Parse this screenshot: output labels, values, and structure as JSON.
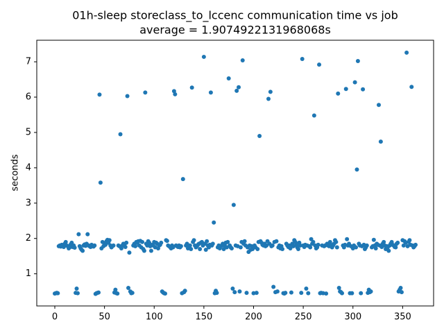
{
  "chart_data": {
    "type": "scatter",
    "title": "01h-sleep storeclass_to_lccenc communication time vs job",
    "subtitle": "average = 1.9074922131968068s",
    "y_label": "seconds",
    "color": "#1f77b4",
    "xlim": [
      -18.15,
      381.15
    ],
    "ylim": [
      0.09,
      7.61
    ],
    "xticks": [
      0,
      50,
      100,
      150,
      200,
      250,
      300,
      350
    ],
    "yticks": [
      1,
      2,
      3,
      4,
      5,
      6,
      7
    ],
    "x": [
      0,
      1,
      2,
      3,
      4,
      5,
      6,
      7,
      8,
      9,
      10,
      11,
      12,
      13,
      14,
      15,
      16,
      17,
      18,
      19,
      20,
      21,
      22,
      23,
      24,
      25,
      26,
      27,
      28,
      29,
      30,
      31,
      32,
      33,
      34,
      35,
      36,
      37,
      38,
      39,
      40,
      41,
      42,
      43,
      44,
      45,
      46,
      47,
      48,
      49,
      50,
      51,
      52,
      53,
      54,
      55,
      56,
      57,
      58,
      59,
      60,
      61,
      62,
      63,
      64,
      65,
      66,
      67,
      68,
      69,
      70,
      71,
      72,
      73,
      74,
      75,
      76,
      77,
      78,
      79,
      80,
      81,
      82,
      83,
      84,
      85,
      86,
      87,
      88,
      89,
      90,
      91,
      92,
      93,
      94,
      95,
      96,
      97,
      98,
      99,
      100,
      101,
      102,
      103,
      104,
      105,
      106,
      107,
      108,
      109,
      110,
      111,
      112,
      113,
      114,
      115,
      116,
      117,
      118,
      119,
      120,
      121,
      122,
      123,
      124,
      125,
      126,
      127,
      128,
      129,
      130,
      131,
      132,
      133,
      134,
      135,
      136,
      137,
      138,
      139,
      140,
      141,
      142,
      143,
      144,
      145,
      146,
      147,
      148,
      149,
      150,
      151,
      152,
      153,
      154,
      155,
      156,
      157,
      158,
      159,
      160,
      161,
      162,
      163,
      164,
      165,
      166,
      167,
      168,
      169,
      170,
      171,
      172,
      173,
      174,
      175,
      176,
      177,
      178,
      179,
      180,
      181,
      182,
      183,
      184,
      185,
      186,
      187,
      188,
      189,
      190,
      191,
      192,
      193,
      194,
      195,
      196,
      197,
      198,
      199,
      200,
      201,
      202,
      203,
      204,
      205,
      206,
      207,
      208,
      209,
      210,
      211,
      212,
      213,
      214,
      215,
      216,
      217,
      218,
      219,
      220,
      221,
      222,
      223,
      224,
      225,
      226,
      227,
      228,
      229,
      230,
      231,
      232,
      233,
      234,
      235,
      236,
      237,
      238,
      239,
      240,
      241,
      242,
      243,
      244,
      245,
      246,
      247,
      248,
      249,
      250,
      251,
      252,
      253,
      254,
      255,
      256,
      257,
      258,
      259,
      260,
      261,
      262,
      263,
      264,
      265,
      266,
      267,
      268,
      269,
      270,
      271,
      272,
      273,
      274,
      275,
      276,
      277,
      278,
      279,
      280,
      281,
      282,
      283,
      284,
      285,
      286,
      287,
      288,
      289,
      290,
      291,
      292,
      293,
      294,
      295,
      296,
      297,
      298,
      299,
      300,
      301,
      302,
      303,
      304,
      305,
      306,
      307,
      308,
      309,
      310,
      311,
      312,
      313,
      314,
      315,
      316,
      317,
      318,
      319,
      320,
      321,
      322,
      323,
      324,
      325,
      326,
      327,
      328,
      329,
      330,
      331,
      332,
      333,
      334,
      335,
      336,
      337,
      338,
      339,
      340,
      341,
      342,
      343,
      344,
      345,
      346,
      347,
      348,
      349,
      350,
      351,
      352,
      353,
      354,
      355,
      356,
      357,
      358,
      359,
      360,
      361,
      362,
      363
    ],
    "values": [
      0.44,
      0.45,
      0.46,
      0.45,
      1.78,
      1.8,
      1.77,
      1.82,
      1.79,
      1.76,
      1.85,
      1.9,
      1.8,
      1.78,
      1.72,
      1.75,
      1.83,
      1.88,
      1.76,
      1.8,
      1.74,
      0.46,
      0.58,
      0.45,
      2.12,
      1.78,
      1.72,
      1.68,
      1.65,
      1.8,
      1.83,
      1.79,
      1.85,
      2.12,
      1.8,
      1.78,
      1.76,
      1.82,
      1.79,
      1.77,
      1.8,
      0.43,
      0.45,
      0.46,
      0.47,
      6.07,
      3.58,
      1.72,
      1.9,
      1.78,
      1.85,
      1.82,
      1.92,
      1.96,
      1.88,
      1.95,
      1.8,
      1.75,
      1.78,
      1.8,
      0.47,
      0.55,
      0.45,
      0.44,
      1.8,
      1.78,
      4.95,
      1.72,
      1.8,
      1.85,
      1.83,
      1.76,
      1.88,
      6.03,
      0.6,
      1.6,
      0.5,
      0.45,
      0.46,
      1.8,
      1.85,
      1.78,
      1.9,
      1.88,
      1.92,
      1.8,
      1.93,
      1.75,
      1.9,
      1.7,
      1.65,
      6.13,
      1.85,
      1.8,
      1.92,
      1.88,
      1.78,
      1.65,
      1.82,
      1.8,
      1.9,
      1.75,
      1.88,
      1.85,
      1.72,
      1.8,
      1.82,
      1.88,
      0.5,
      0.47,
      0.45,
      0.44,
      1.95,
      1.93,
      1.8,
      1.78,
      1.76,
      1.72,
      1.8,
      1.75,
      6.17,
      6.08,
      1.8,
      1.78,
      1.76,
      1.8,
      1.75,
      1.78,
      0.45,
      3.68,
      0.48,
      0.52,
      1.8,
      1.85,
      1.72,
      1.75,
      1.8,
      1.7,
      6.27,
      1.9,
      1.95,
      1.8,
      1.75,
      1.78,
      1.82,
      1.85,
      1.7,
      1.88,
      1.9,
      1.8,
      7.14,
      1.85,
      1.68,
      1.92,
      1.8,
      1.75,
      1.82,
      6.13,
      1.8,
      1.85,
      2.45,
      0.45,
      0.52,
      0.46,
      1.75,
      1.8,
      1.72,
      1.78,
      1.8,
      1.85,
      1.7,
      1.8,
      1.88,
      1.75,
      1.9,
      6.53,
      1.8,
      1.75,
      1.72,
      0.58,
      2.95,
      0.48,
      1.8,
      6.18,
      1.78,
      6.28,
      0.5,
      1.75,
      1.9,
      7.04,
      1.85,
      1.92,
      1.8,
      0.46,
      1.75,
      1.62,
      1.8,
      1.68,
      1.78,
      1.7,
      0.45,
      1.8,
      1.75,
      0.46,
      1.7,
      1.9,
      4.9,
      1.92,
      1.88,
      1.82,
      1.8,
      1.85,
      1.78,
      1.8,
      1.92,
      5.95,
      1.85,
      6.15,
      1.78,
      1.8,
      0.63,
      1.9,
      0.48,
      1.92,
      0.5,
      1.75,
      1.8,
      1.72,
      1.78,
      1.7,
      0.45,
      0.44,
      0.46,
      1.85,
      1.8,
      1.76,
      1.8,
      1.72,
      0.47,
      1.85,
      1.78,
      1.95,
      1.9,
      1.82,
      1.75,
      1.7,
      1.88,
      1.8,
      0.46,
      7.08,
      1.8,
      1.76,
      1.82,
      0.58,
      1.8,
      0.45,
      1.78,
      1.75,
      1.98,
      1.85,
      1.9,
      5.48,
      1.8,
      1.72,
      1.75,
      1.82,
      6.92,
      0.45,
      0.46,
      1.8,
      0.45,
      1.78,
      1.8,
      0.44,
      1.85,
      1.8,
      1.78,
      1.9,
      1.82,
      1.75,
      1.8,
      1.85,
      1.95,
      1.9,
      1.75,
      6.1,
      0.6,
      0.5,
      0.48,
      0.45,
      1.8,
      1.75,
      1.82,
      6.23,
      1.98,
      1.8,
      1.85,
      0.45,
      1.78,
      0.45,
      1.72,
      1.8,
      6.42,
      1.75,
      3.95,
      7.02,
      1.85,
      1.8,
      0.45,
      1.78,
      6.22,
      1.82,
      1.7,
      1.75,
      1.8,
      0.46,
      0.55,
      0.48,
      0.5,
      1.75,
      1.78,
      1.96,
      1.8,
      1.72,
      1.85,
      1.82,
      5.78,
      1.8,
      4.74,
      1.76,
      1.85,
      1.9,
      1.8,
      1.7,
      1.78,
      1.75,
      1.65,
      1.8,
      1.85,
      1.9,
      1.82,
      1.8,
      1.76,
      1.75,
      1.85,
      1.88,
      0.5,
      0.55,
      0.6,
      0.48,
      1.95,
      1.8,
      1.92,
      1.88,
      7.26,
      1.78,
      1.9,
      1.95,
      1.82,
      6.29,
      1.8,
      1.75,
      1.78,
      1.82
    ]
  }
}
